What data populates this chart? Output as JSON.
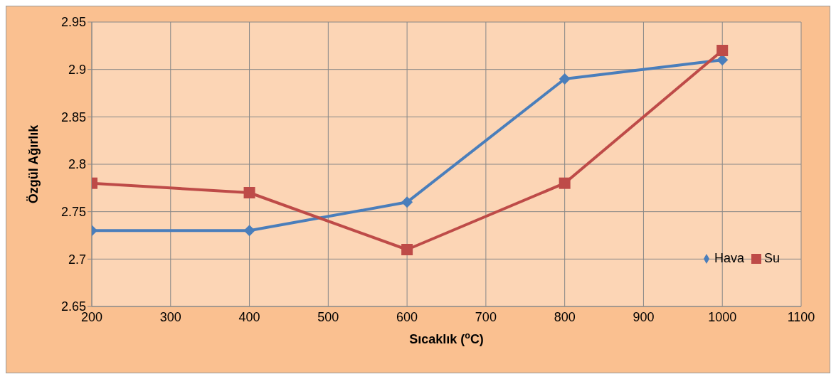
{
  "chart_data": {
    "type": "line",
    "xlabel": "Sıcaklık  ($^{o}$C)",
    "ylabel": "Özgül Ağırlık",
    "x": [
      200,
      400,
      600,
      800,
      1000
    ],
    "series": [
      {
        "name": "Hava",
        "color": "#4a7ebb",
        "marker": "diamond",
        "values": [
          2.73,
          2.73,
          2.76,
          2.89,
          2.91
        ]
      },
      {
        "name": "Su",
        "color": "#be4b48",
        "marker": "square",
        "values": [
          2.78,
          2.77,
          2.71,
          2.78,
          2.92
        ]
      }
    ],
    "xlim": [
      200,
      1100
    ],
    "xticks": [
      200,
      300,
      400,
      500,
      600,
      700,
      800,
      900,
      1000,
      1100
    ],
    "ylim": [
      2.65,
      2.95
    ],
    "yticks": [
      2.65,
      2.7,
      2.75,
      2.8,
      2.85,
      2.9,
      2.95
    ],
    "grid": true,
    "legend": "bottom right",
    "line_style": "solid"
  }
}
